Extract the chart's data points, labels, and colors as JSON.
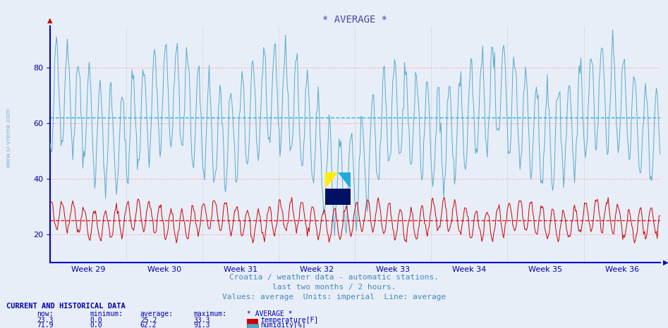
{
  "title": "* AVERAGE *",
  "subtitle1": "Croatia / weather data - automatic stations.",
  "subtitle2": "last two months / 2 hours.",
  "subtitle3": "Values: average  Units: imperial  Line: average",
  "watermark": "www.si-vreme.com",
  "x_tick_labels": [
    "Week 29",
    "Week 30",
    "Week 31",
    "Week 32",
    "Week 33",
    "Week 34",
    "Week 35",
    "Week 36"
  ],
  "ylim": [
    10,
    95
  ],
  "yticks": [
    20,
    40,
    60,
    80
  ],
  "temp_avg": 25.2,
  "temp_min": 0.0,
  "temp_max": 33.3,
  "temp_now": 23.3,
  "hum_avg": 62.2,
  "hum_min": 0.0,
  "hum_max": 91.3,
  "hum_now": 71.9,
  "temp_color": "#cc0000",
  "hum_color": "#55aacc",
  "avg_temp_line_color": "#cc0000",
  "avg_hum_line_color": "#00aacc",
  "axis_color": "#0000cc",
  "grid_color_major": "#ffaaaa",
  "grid_color_minor": "#cccccc",
  "background_color": "#e8eef8",
  "plot_bg_color": "#e8eef8",
  "title_color": "#4444aa",
  "subtitle_color": "#4488bb",
  "label_color": "#0000aa",
  "table_header_color": "#0000aa",
  "n_points": 672,
  "n_weeks": 8
}
